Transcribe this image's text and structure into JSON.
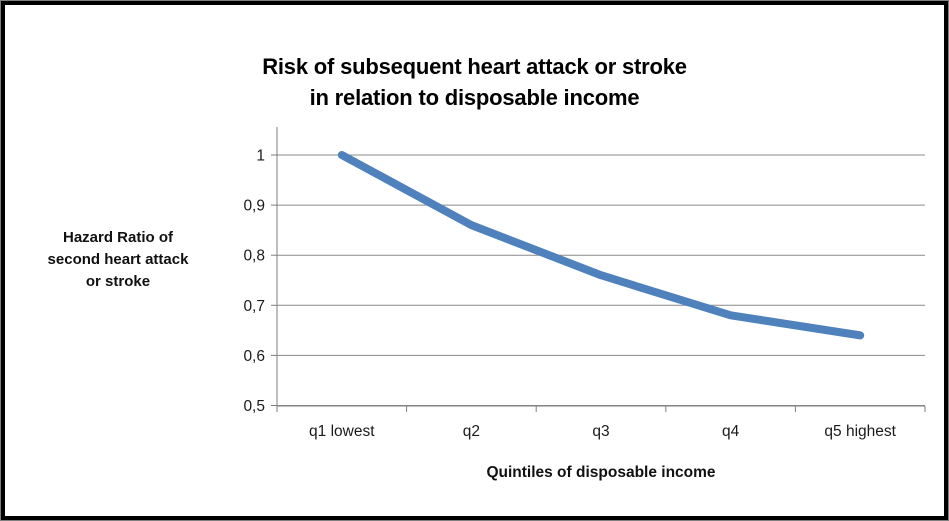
{
  "frame": {
    "border_color": "#000000",
    "edge_color": "#7f7f7f",
    "background": "#ffffff"
  },
  "chart_data": {
    "type": "line",
    "title_lines": [
      "Risk of subsequent heart attack or stroke",
      "in relation to disposable income"
    ],
    "categories": [
      "q1 lowest",
      "q2",
      "q3",
      "q4",
      "q5 highest"
    ],
    "values": [
      1.0,
      0.86,
      0.76,
      0.68,
      0.64
    ],
    "series_name": "Hazard Ratio",
    "ylabel": "Hazard Ratio of\nsecond heart attack\nor stroke",
    "xlabel": "Quintiles of disposable income",
    "ylim": [
      0.5,
      1.0
    ],
    "ytick_step": 0.1,
    "ytick_labels_top_to_bottom": [
      "1",
      "0,9",
      "0,8",
      "0,7",
      "0,6",
      "0,5"
    ],
    "grid": true,
    "legend": "none",
    "line_color": "#4f81bd",
    "line_width": 8,
    "gridline_color": "#8a8a8a",
    "axis_color": "#7f7f7f",
    "text_color": "#1a1a1a"
  }
}
